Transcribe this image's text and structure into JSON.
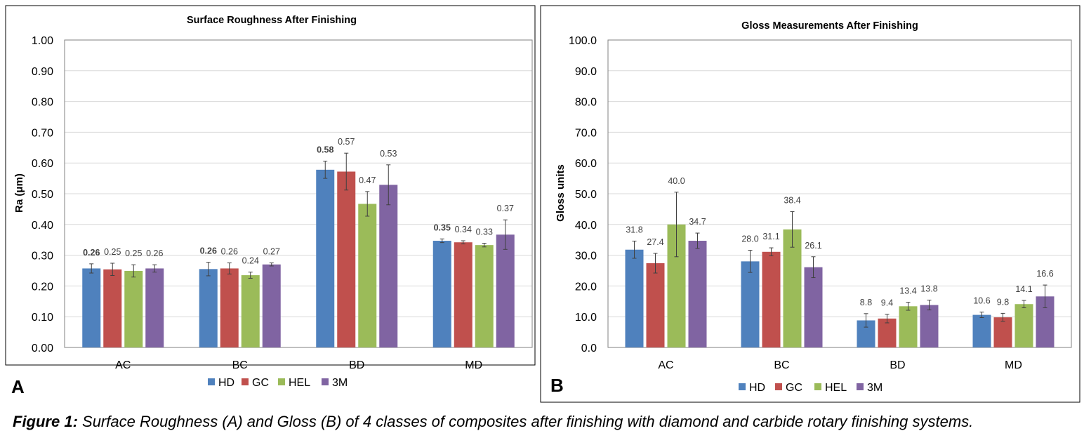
{
  "figure": {
    "caption_label": "Figure 1:",
    "caption_text": " Surface Roughness (A) and Gloss (B) of 4 classes of composites after finishing with diamond and carbide rotary finishing systems."
  },
  "legend": [
    "HD",
    "GC",
    "HEL",
    "3M"
  ],
  "colors": {
    "HD": "#4f81bd",
    "GC": "#c0504d",
    "HEL": "#9bbb59",
    "3M": "#8064a2",
    "grid": "#d9d9d9",
    "axis": "#808080",
    "frame": "#000000"
  },
  "chart_data": [
    {
      "panel_label": "A",
      "type": "bar",
      "title": "Surface Roughness After Finishing",
      "xlabel": "",
      "ylabel": "Ra  (μm)",
      "ylim": [
        0,
        1.0
      ],
      "ytick_step": 0.1,
      "ytick_decimals": 2,
      "grid": true,
      "legend_position": "bottom",
      "categories": [
        "AC",
        "BC",
        "BD",
        "MD"
      ],
      "series": [
        {
          "name": "HD",
          "values": [
            0.26,
            0.26,
            0.58,
            0.35
          ],
          "errors": [
            0.015,
            0.022,
            0.028,
            0.006
          ],
          "labels": [
            "0.26",
            "0.26",
            "0.58",
            "0.35"
          ],
          "bold_labels": true
        },
        {
          "name": "GC",
          "values": [
            0.25,
            0.26,
            0.57,
            0.34
          ],
          "errors": [
            0.02,
            0.018,
            0.06,
            0.005
          ],
          "labels": [
            "0.25",
            "0.26",
            "0.57",
            "0.34"
          ],
          "bold_labels": false
        },
        {
          "name": "HEL",
          "values": [
            0.25,
            0.24,
            0.47,
            0.33
          ],
          "errors": [
            0.02,
            0.01,
            0.04,
            0.006
          ],
          "labels": [
            "0.25",
            "0.24",
            "0.47",
            "0.33"
          ],
          "bold_labels": false
        },
        {
          "name": "3M",
          "values": [
            0.26,
            0.27,
            0.53,
            0.37
          ],
          "errors": [
            0.012,
            0.005,
            0.065,
            0.048
          ],
          "labels": [
            "0.26",
            "0.27",
            "0.53",
            "0.37"
          ],
          "bold_labels": false
        }
      ],
      "plotted_values": [
        [
          0.257,
          0.255,
          0.578,
          0.347
        ],
        [
          0.254,
          0.257,
          0.572,
          0.342
        ],
        [
          0.249,
          0.235,
          0.467,
          0.333
        ],
        [
          0.257,
          0.27,
          0.529,
          0.367
        ]
      ]
    },
    {
      "panel_label": "B",
      "type": "bar",
      "title": "Gloss Measurements After Finishing",
      "xlabel": "",
      "ylabel": "Gloss units",
      "ylim": [
        0,
        100
      ],
      "ytick_step": 10,
      "ytick_decimals": 1,
      "grid": true,
      "legend_position": "bottom",
      "categories": [
        "AC",
        "BC",
        "BD",
        "MD"
      ],
      "series": [
        {
          "name": "HD",
          "values": [
            31.8,
            28.0,
            8.8,
            10.6
          ],
          "errors": [
            2.8,
            3.6,
            2.2,
            0.9
          ],
          "labels": [
            "31.8",
            "28.0",
            "8.8",
            "10.6"
          ],
          "bold_labels": false
        },
        {
          "name": "GC",
          "values": [
            27.4,
            31.1,
            9.4,
            9.8
          ],
          "errors": [
            3.2,
            1.3,
            1.4,
            1.3
          ],
          "labels": [
            "27.4",
            "31.1",
            "9.4",
            "9.8"
          ],
          "bold_labels": false
        },
        {
          "name": "HEL",
          "values": [
            40.0,
            38.4,
            13.4,
            14.1
          ],
          "errors": [
            10.5,
            5.8,
            1.3,
            1.2
          ],
          "labels": [
            "40.0",
            "38.4",
            "13.4",
            "14.1"
          ],
          "bold_labels": false
        },
        {
          "name": "3M",
          "values": [
            34.7,
            26.1,
            13.8,
            16.6
          ],
          "errors": [
            2.5,
            3.4,
            1.6,
            3.7
          ],
          "labels": [
            "34.7",
            "26.1",
            "13.8",
            "16.6"
          ],
          "bold_labels": false
        }
      ]
    }
  ]
}
